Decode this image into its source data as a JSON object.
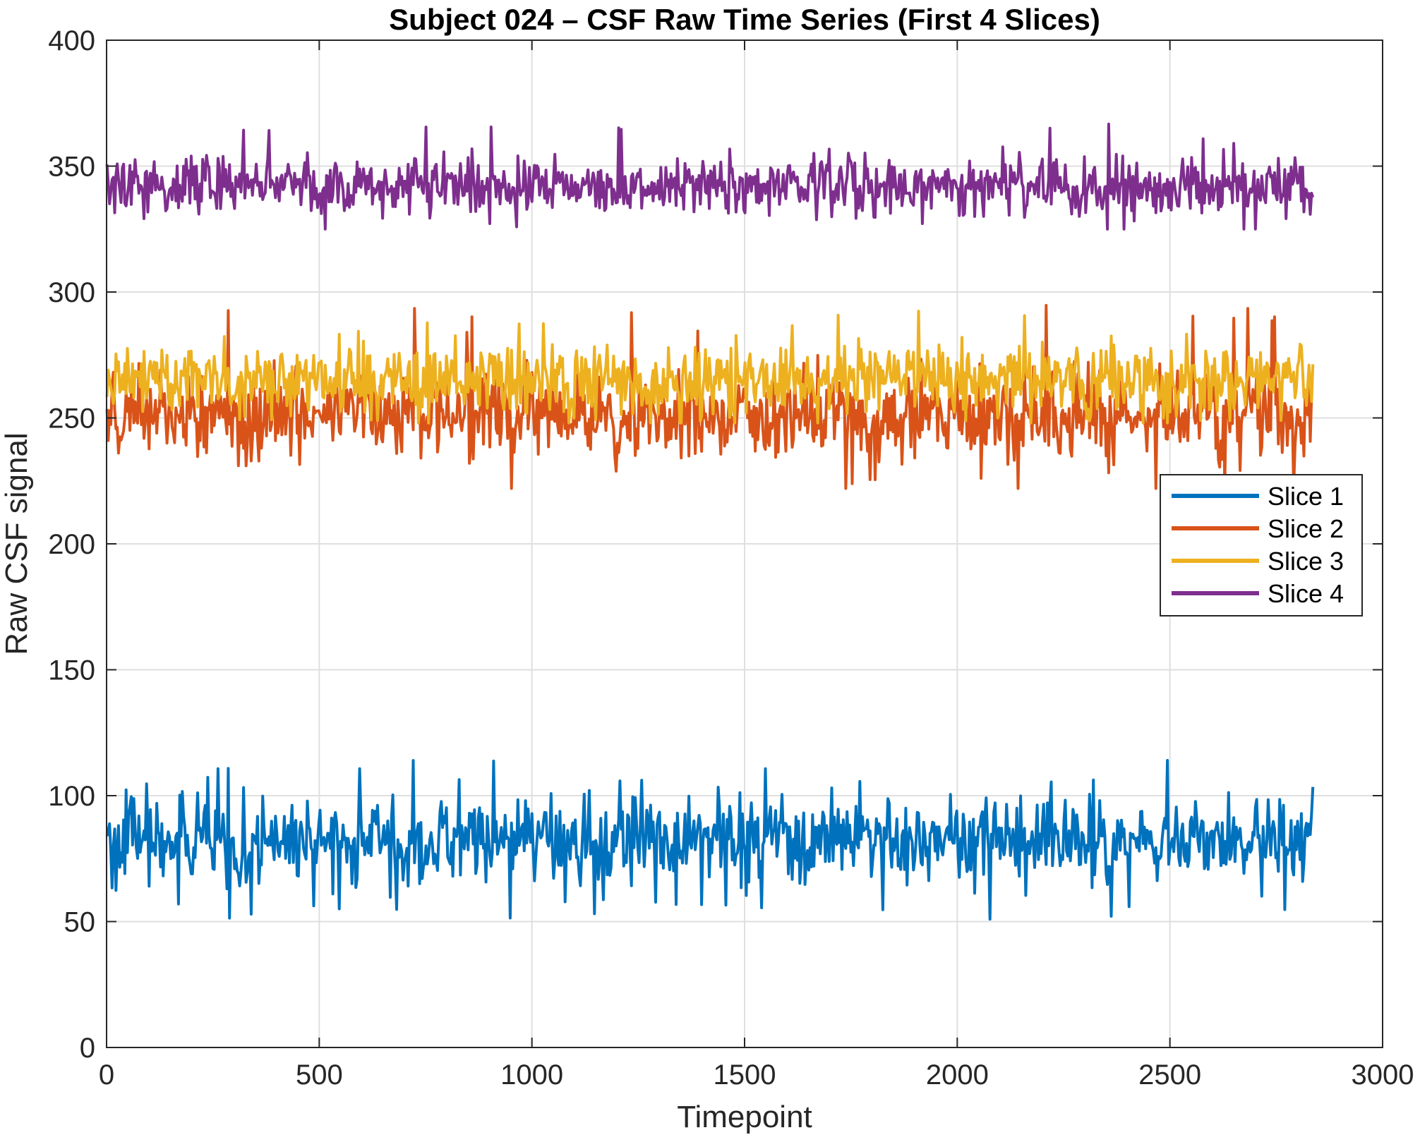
{
  "chart_data": {
    "type": "line",
    "title": "Subject 024 – CSF Raw Time Series (First 4 Slices)",
    "xlabel": "Timepoint",
    "ylabel": "Raw CSF signal",
    "xlim": [
      0,
      3000
    ],
    "ylim": [
      0,
      400
    ],
    "xticks": [
      0,
      500,
      1000,
      1500,
      2000,
      2500,
      3000
    ],
    "xtick_labels": [
      "0",
      "500",
      "1000",
      "1500",
      "2000",
      "2500",
      "3000"
    ],
    "yticks": [
      0,
      50,
      100,
      150,
      200,
      250,
      300,
      350,
      400
    ],
    "ytick_labels": [
      "0",
      "50",
      "100",
      "150",
      "200",
      "250",
      "300",
      "350",
      "400"
    ],
    "grid": true,
    "legend_position": "right",
    "n_timepoints": 2836,
    "series": [
      {
        "name": "Slice 1",
        "color": "#0072BD",
        "x_range": [
          1,
          2836
        ],
        "mean": 82,
        "typical_range": [
          65,
          100
        ],
        "min": 39,
        "max": 114
      },
      {
        "name": "Slice 2",
        "color": "#D95319",
        "x_range": [
          1,
          2836
        ],
        "mean": 251,
        "typical_range": [
          235,
          270
        ],
        "min": 222,
        "max": 297
      },
      {
        "name": "Slice 3",
        "color": "#EDB120",
        "x_range": [
          1,
          2836
        ],
        "mean": 265,
        "typical_range": [
          252,
          280
        ],
        "min": 248,
        "max": 294
      },
      {
        "name": "Slice 4",
        "color": "#7E2F8E",
        "x_range": [
          1,
          2836
        ],
        "mean": 342,
        "typical_range": [
          332,
          355
        ],
        "min": 325,
        "max": 367
      }
    ]
  },
  "colors": {
    "axis": "#262626",
    "grid": "#dfdfdf",
    "background": "#ffffff"
  }
}
